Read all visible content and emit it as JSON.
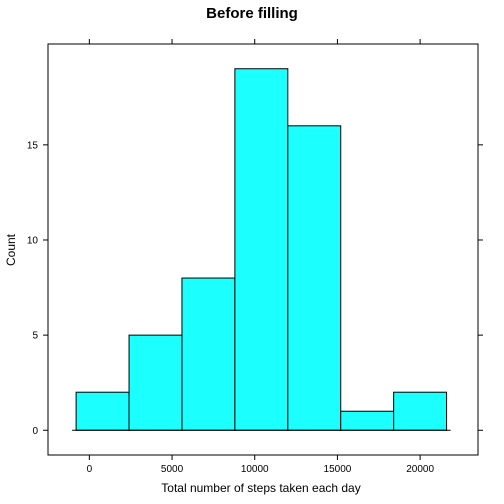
{
  "chart_data": {
    "type": "bar",
    "title": "Before filling",
    "xlabel": "Total number of steps taken each day",
    "ylabel": "Count",
    "bins": [
      {
        "start": -800,
        "end": 2400,
        "count": 2
      },
      {
        "start": 2400,
        "end": 5600,
        "count": 5
      },
      {
        "start": 5600,
        "end": 8800,
        "count": 8
      },
      {
        "start": 8800,
        "end": 12000,
        "count": 19
      },
      {
        "start": 12000,
        "end": 15200,
        "count": 16
      },
      {
        "start": 15200,
        "end": 18400,
        "count": 1
      },
      {
        "start": 18400,
        "end": 21600,
        "count": 2
      }
    ],
    "xlim": [
      -2500,
      23500
    ],
    "ylim": [
      -1.3,
      20.3
    ],
    "xticks": [
      0,
      5000,
      10000,
      15000,
      20000
    ],
    "xtick_labels": [
      "0",
      "5000",
      "10000",
      "15000",
      "20000"
    ],
    "yticks": [
      0,
      5,
      10,
      15
    ],
    "ytick_labels": [
      "0",
      "5",
      "10",
      "15"
    ],
    "bar_color": "#1CFFFF",
    "bar_edge_color": "#000000",
    "grid": false,
    "legend": "none"
  }
}
